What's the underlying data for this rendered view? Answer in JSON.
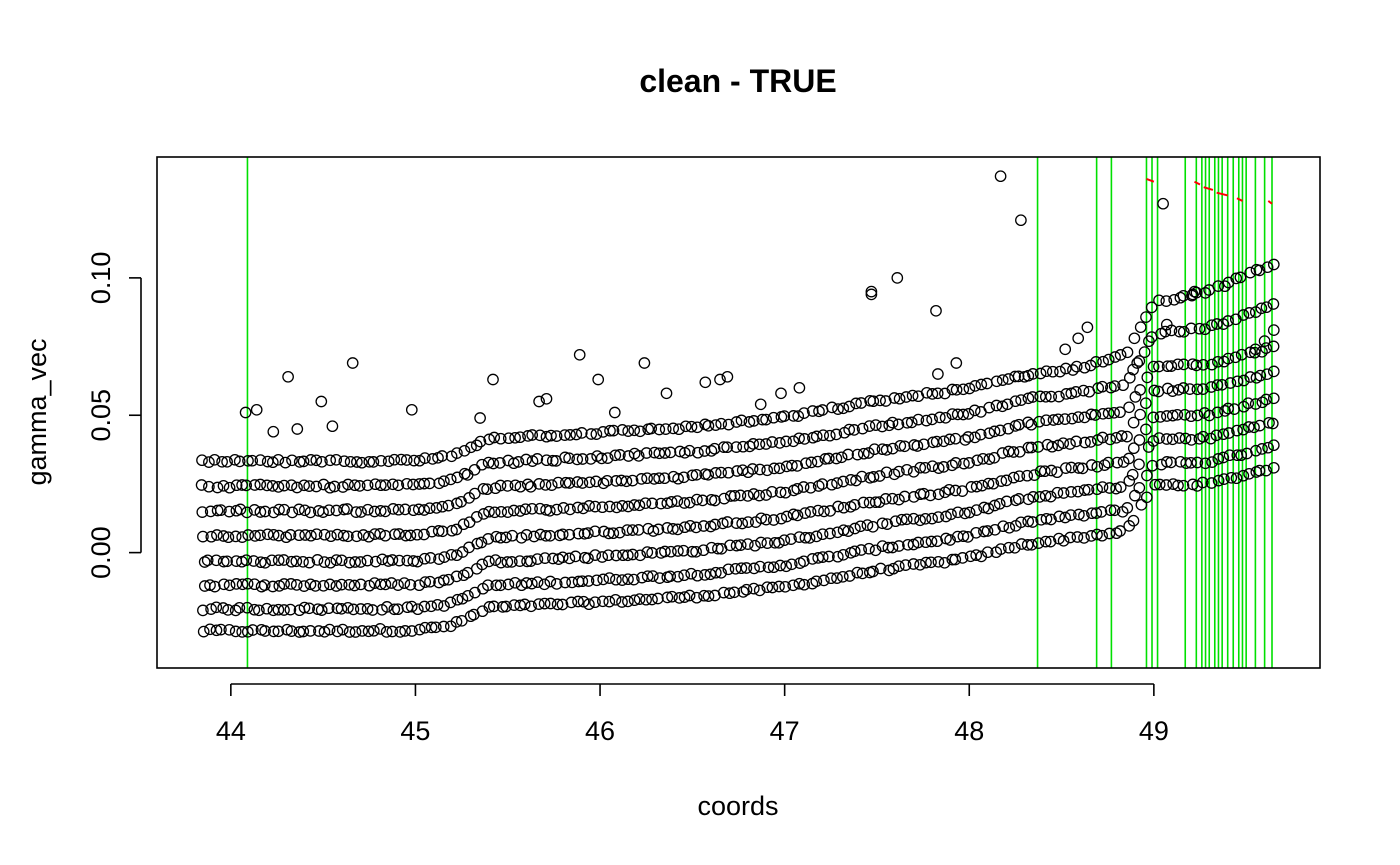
{
  "chart_data": {
    "type": "scatter",
    "title": "clean - TRUE",
    "xlabel": "coords",
    "ylabel": "gamma_vec",
    "xlim": [
      43.6,
      49.9
    ],
    "ylim": [
      -0.042,
      0.144
    ],
    "x_ticks": [
      44,
      45,
      46,
      47,
      48,
      49
    ],
    "x_tick_labels": [
      "44",
      "45",
      "46",
      "47",
      "48",
      "49"
    ],
    "y_ticks": [
      0.0,
      0.05,
      0.1
    ],
    "y_tick_labels": [
      "0.00",
      "0.05",
      "0.10"
    ],
    "grid": false,
    "point_color": "#000000",
    "vline_color": "#00e000",
    "segment_color": "#ff0000",
    "vlines": [
      44.09,
      48.37,
      48.69,
      48.77,
      48.96,
      48.99,
      49.02,
      49.17,
      49.23,
      49.26,
      49.28,
      49.3,
      49.33,
      49.35,
      49.37,
      49.4,
      49.43,
      49.46,
      49.48,
      49.5,
      49.55,
      49.6,
      49.64
    ],
    "red_segments": [
      {
        "x": [
          48.96,
          49.0
        ],
        "y": [
          0.136,
          0.135
        ]
      },
      {
        "x": [
          49.22,
          49.25
        ],
        "y": [
          0.135,
          0.134
        ]
      },
      {
        "x": [
          49.27,
          49.32
        ],
        "y": [
          0.133,
          0.132
        ]
      },
      {
        "x": [
          49.34,
          49.4
        ],
        "y": [
          0.131,
          0.13
        ]
      },
      {
        "x": [
          49.45,
          49.48
        ],
        "y": [
          0.129,
          0.128
        ]
      },
      {
        "x": [
          49.62,
          49.64
        ],
        "y": [
          0.128,
          0.127
        ]
      }
    ],
    "band_offsets": [
      -0.0285,
      -0.0205,
      -0.0118,
      -0.0032,
      0.0062,
      0.0152,
      0.0242,
      0.0332
    ],
    "base_curve": {
      "x": [
        43.85,
        44.5,
        45.0,
        45.2,
        45.4,
        46.0,
        46.5,
        47.0,
        47.5,
        48.0,
        48.3,
        48.7,
        48.85,
        49.0,
        49.3,
        49.65
      ],
      "y": [
        0.0,
        0.0,
        0.0003,
        0.002,
        0.0085,
        0.0105,
        0.0125,
        0.016,
        0.022,
        0.0265,
        0.0315,
        0.035,
        0.036,
        0.053,
        0.0535,
        0.0595
      ]
    },
    "points_per_band": 170,
    "outliers": [
      {
        "x": 44.08,
        "y": 0.051
      },
      {
        "x": 44.14,
        "y": 0.052
      },
      {
        "x": 44.31,
        "y": 0.064
      },
      {
        "x": 44.36,
        "y": 0.045
      },
      {
        "x": 44.49,
        "y": 0.055
      },
      {
        "x": 44.66,
        "y": 0.069
      },
      {
        "x": 44.98,
        "y": 0.052
      },
      {
        "x": 44.23,
        "y": 0.044
      },
      {
        "x": 44.55,
        "y": 0.046
      },
      {
        "x": 45.42,
        "y": 0.063
      },
      {
        "x": 45.35,
        "y": 0.049
      },
      {
        "x": 45.67,
        "y": 0.055
      },
      {
        "x": 45.71,
        "y": 0.056
      },
      {
        "x": 45.89,
        "y": 0.072
      },
      {
        "x": 45.99,
        "y": 0.063
      },
      {
        "x": 46.08,
        "y": 0.051
      },
      {
        "x": 46.24,
        "y": 0.069
      },
      {
        "x": 46.36,
        "y": 0.058
      },
      {
        "x": 46.57,
        "y": 0.062
      },
      {
        "x": 46.65,
        "y": 0.063
      },
      {
        "x": 46.69,
        "y": 0.064
      },
      {
        "x": 46.87,
        "y": 0.054
      },
      {
        "x": 46.98,
        "y": 0.058
      },
      {
        "x": 47.08,
        "y": 0.06
      },
      {
        "x": 47.47,
        "y": 0.095
      },
      {
        "x": 47.47,
        "y": 0.094
      },
      {
        "x": 47.61,
        "y": 0.1
      },
      {
        "x": 47.82,
        "y": 0.088
      },
      {
        "x": 47.83,
        "y": 0.065
      },
      {
        "x": 47.93,
        "y": 0.069
      },
      {
        "x": 48.17,
        "y": 0.137
      },
      {
        "x": 48.28,
        "y": 0.121
      },
      {
        "x": 48.3,
        "y": 0.064
      },
      {
        "x": 48.52,
        "y": 0.074
      },
      {
        "x": 48.59,
        "y": 0.078
      },
      {
        "x": 48.64,
        "y": 0.082
      },
      {
        "x": 48.91,
        "y": 0.069
      },
      {
        "x": 48.95,
        "y": 0.073
      },
      {
        "x": 49.05,
        "y": 0.127
      },
      {
        "x": 49.07,
        "y": 0.083
      },
      {
        "x": 49.21,
        "y": 0.094
      },
      {
        "x": 49.22,
        "y": 0.095
      },
      {
        "x": 49.65,
        "y": 0.081
      },
      {
        "x": 49.6,
        "y": 0.077
      },
      {
        "x": 49.55,
        "y": 0.074
      }
    ]
  }
}
